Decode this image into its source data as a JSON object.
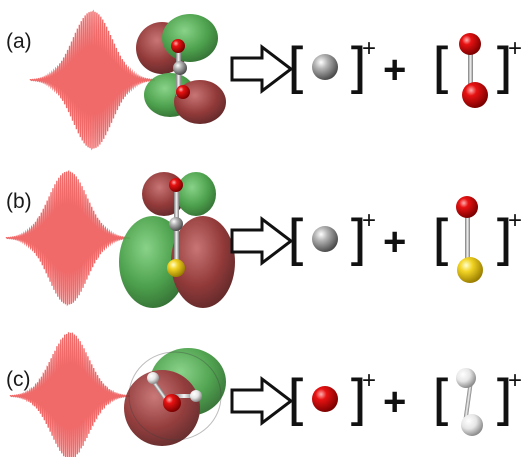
{
  "panels": [
    {
      "label": "(a)",
      "product1_bracket_open": "[",
      "product1_bracket_close": "]",
      "product1_charge": "+",
      "operator": "+",
      "product2_bracket_open": "[",
      "product2_bracket_close": "]",
      "product2_charge": "+",
      "product1_atom": "gray",
      "product2_atoms": [
        "red",
        "red"
      ],
      "orbital_colors": [
        "green",
        "dark-red"
      ]
    },
    {
      "label": "(b)",
      "product1_bracket_open": "[",
      "product1_bracket_close": "]",
      "product1_charge": "+",
      "operator": "+",
      "product2_bracket_open": "[",
      "product2_bracket_close": "]",
      "product2_charge": "+",
      "product1_atom": "gray",
      "product2_atoms": [
        "red",
        "yellow"
      ],
      "orbital_colors": [
        "green",
        "dark-red"
      ]
    },
    {
      "label": "(c)",
      "product1_bracket_open": "[",
      "product1_bracket_close": "]",
      "product1_charge": "+",
      "operator": "+",
      "product2_bracket_open": "[",
      "product2_bracket_close": "]",
      "product2_charge": "+",
      "product1_atom": "red",
      "product2_atoms": [
        "white",
        "white"
      ],
      "orbital_colors": [
        "green",
        "dark-red"
      ]
    }
  ],
  "colors": {
    "pulse": "#f06a6a",
    "carbon": "#8c8c8c",
    "oxygen": "#e01010",
    "sulfur": "#f0d020",
    "hydrogen": "#e8e8e8",
    "orbital_green": "#3f9a3f",
    "orbital_red": "#8a2a2a"
  },
  "icons": [
    "laser-pulse-icon",
    "orbital-icon",
    "reaction-arrow-icon",
    "atom-icon"
  ]
}
